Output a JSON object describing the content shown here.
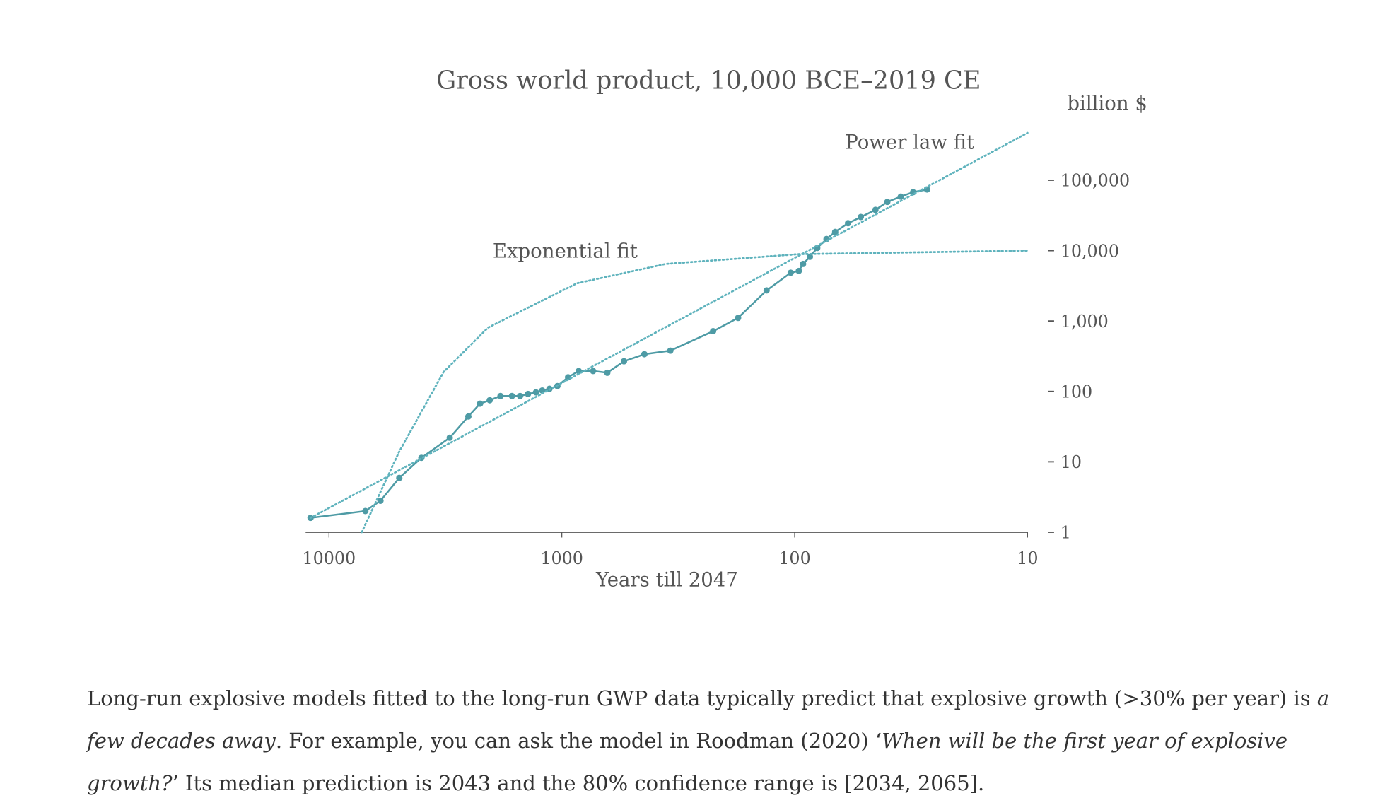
{
  "chart_data": {
    "type": "line",
    "title": "Gross world product, 10,000 BCE–2019 CE",
    "y_unit": "billion $",
    "xlabel": "Years till 2047",
    "x_scale": "log",
    "y_scale": "log",
    "x_reversed": true,
    "xlim": [
      12600,
      10
    ],
    "ylim": [
      1,
      1000000
    ],
    "xticks": [
      10000,
      1000,
      100,
      10
    ],
    "yticks": [
      1,
      10,
      100,
      {
        "value": 1000,
        "label": "1,000"
      },
      {
        "value": 10000,
        "label": "10,000"
      },
      {
        "value": 100000,
        "label": "100,000"
      }
    ],
    "series": [
      {
        "color": "#4e9ba5",
        "style": "solid",
        "markers": true,
        "x": [
          12000,
          6980,
          6010,
          4990,
          4010,
          3030,
          2520,
          2245,
          2040,
          1834,
          1637,
          1511,
          1397,
          1291,
          1214,
          1130,
          1045,
          940,
          846,
          734,
          638,
          541,
          442,
          342,
          224,
          175,
          132,
          104,
          96,
          92,
          86,
          80,
          73,
          67,
          59,
          52,
          45,
          40,
          35,
          31,
          27
        ],
        "values": [
          1.6,
          2.0,
          2.8,
          5.9,
          11.4,
          22,
          44,
          67,
          75,
          86,
          86,
          86,
          92,
          97,
          103,
          109,
          119,
          159,
          195,
          195,
          184,
          268,
          338,
          379,
          717,
          1107,
          2720,
          4850,
          5140,
          6470,
          8170,
          10900,
          14600,
          18400,
          24500,
          30000,
          37900,
          49200,
          58500,
          67600,
          73800
        ]
      },
      {
        "name": "Power law fit",
        "color": "#5fb3bd",
        "style": "dotted",
        "markers": false,
        "x": [
          12000,
          10
        ],
        "values": [
          1.6,
          470000
        ]
      },
      {
        "name": "Exponential fit",
        "color": "#5fb3bd",
        "style": "dotted",
        "markers": false,
        "x": [
          7230,
          4990,
          3220,
          2075,
          861,
          357,
          96,
          10
        ],
        "values": [
          1,
          14,
          189,
          805,
          3430,
          6470,
          8910,
          10000
        ]
      }
    ]
  },
  "caption": [
    {
      "text": "Long-run explosive models fitted to the long-run GWP data typically predict that explosive growth (>30% per year) is ",
      "italic": false
    },
    {
      "text": "a few decades away",
      "italic": true
    },
    {
      "text": ". For example, you can ask the model in Roodman (2020) ‘",
      "italic": false
    },
    {
      "text": "When will be the first year of explosive growth?",
      "italic": true
    },
    {
      "text": "’ Its median prediction is 2043 and the 80% confidence range is [2034, 2065].",
      "italic": false
    }
  ]
}
